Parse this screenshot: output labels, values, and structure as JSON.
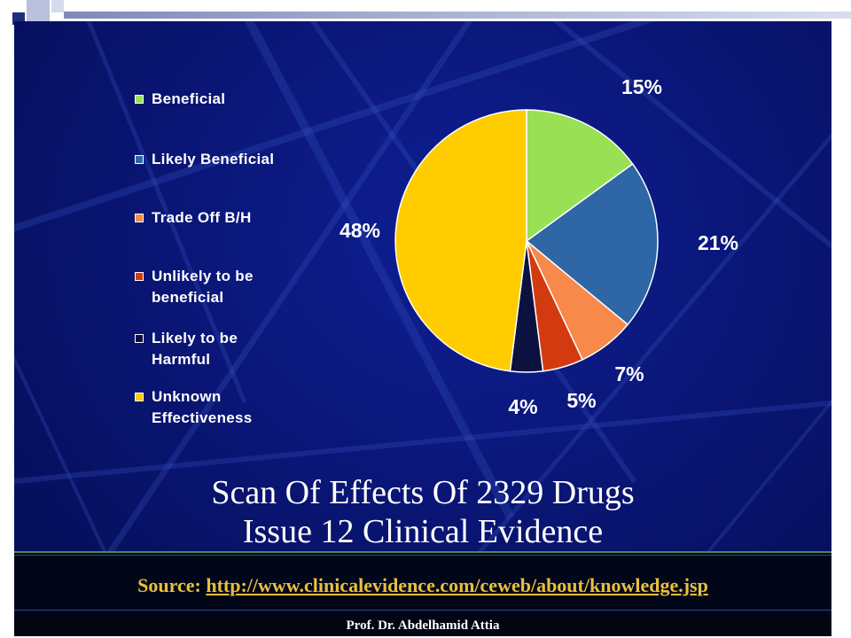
{
  "chart_data": {
    "type": "pie",
    "title": "Scan Of Effects Of 2329 Drugs",
    "subtitle": "Issue 12 Clinical Evidence",
    "legend_position": "left",
    "slices": [
      {
        "label": "Beneficial",
        "value": 15,
        "value_label": "15%",
        "color": "#99e055"
      },
      {
        "label": "Likely Beneficial",
        "value": 21,
        "value_label": "21%",
        "color": "#2e66a6"
      },
      {
        "label": "Trade Off B/H",
        "value": 7,
        "value_label": "7%",
        "color": "#f7894a"
      },
      {
        "label": "Unlikely to be beneficial",
        "value": 5,
        "value_label": "5%",
        "color": "#d43a0f"
      },
      {
        "label": "Likely to be Harmful",
        "value": 4,
        "value_label": "4%",
        "color": "#0b1240"
      },
      {
        "label": "Unknown Effectiveness",
        "value": 48,
        "value_label": "48%",
        "color": "#ffcc00"
      }
    ]
  },
  "legend": {
    "items": [
      {
        "lines": [
          "Beneficial"
        ]
      },
      {
        "lines": [
          "Likely Beneficial"
        ]
      },
      {
        "lines": [
          "Trade Off B/H"
        ]
      },
      {
        "lines": [
          "Unlikely to be",
          "beneficial"
        ]
      },
      {
        "lines": [
          "Likely to be",
          "Harmful"
        ]
      },
      {
        "lines": [
          "Unknown",
          "Effectiveness"
        ]
      }
    ]
  },
  "source": {
    "prefix": "Source: ",
    "url_text": "http://www.clinicalevidence.com/ceweb/about/knowledge.jsp"
  },
  "author": "Prof. Dr. Abdelhamid Attia",
  "colors": {
    "background": "#0a1677",
    "source_text": "#e8c03a"
  }
}
